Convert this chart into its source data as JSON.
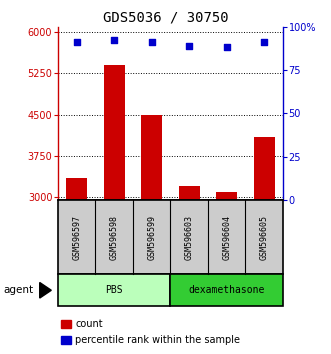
{
  "title": "GDS5036 / 30750",
  "samples": [
    "GSM596597",
    "GSM596598",
    "GSM596599",
    "GSM596603",
    "GSM596604",
    "GSM596605"
  ],
  "counts": [
    3350,
    5400,
    4500,
    3200,
    3100,
    4100
  ],
  "percentiles": [
    91,
    92,
    91,
    89,
    88,
    91
  ],
  "ylim_left": [
    2950,
    6100
  ],
  "ylim_right": [
    0,
    100
  ],
  "yticks_left": [
    3000,
    3750,
    4500,
    5250,
    6000
  ],
  "ytick_labels_left": [
    "3000",
    "3750",
    "4500",
    "5250",
    "6000"
  ],
  "yticks_right": [
    0,
    25,
    50,
    75,
    100
  ],
  "ytick_labels_right": [
    "0",
    "25",
    "50",
    "75",
    "100%"
  ],
  "bar_color": "#cc0000",
  "dot_color": "#0000cc",
  "groups": [
    {
      "label": "PBS",
      "start": 0,
      "end": 2,
      "color": "#bbffbb"
    },
    {
      "label": "dexamethasone",
      "start": 3,
      "end": 5,
      "color": "#33cc33"
    }
  ],
  "agent_label": "agent",
  "legend_count_label": "count",
  "legend_pct_label": "percentile rank within the sample",
  "sample_box_color": "#cccccc",
  "title_fontsize": 10,
  "axis_fontsize": 7,
  "tick_fontsize": 7,
  "label_fontsize": 7
}
